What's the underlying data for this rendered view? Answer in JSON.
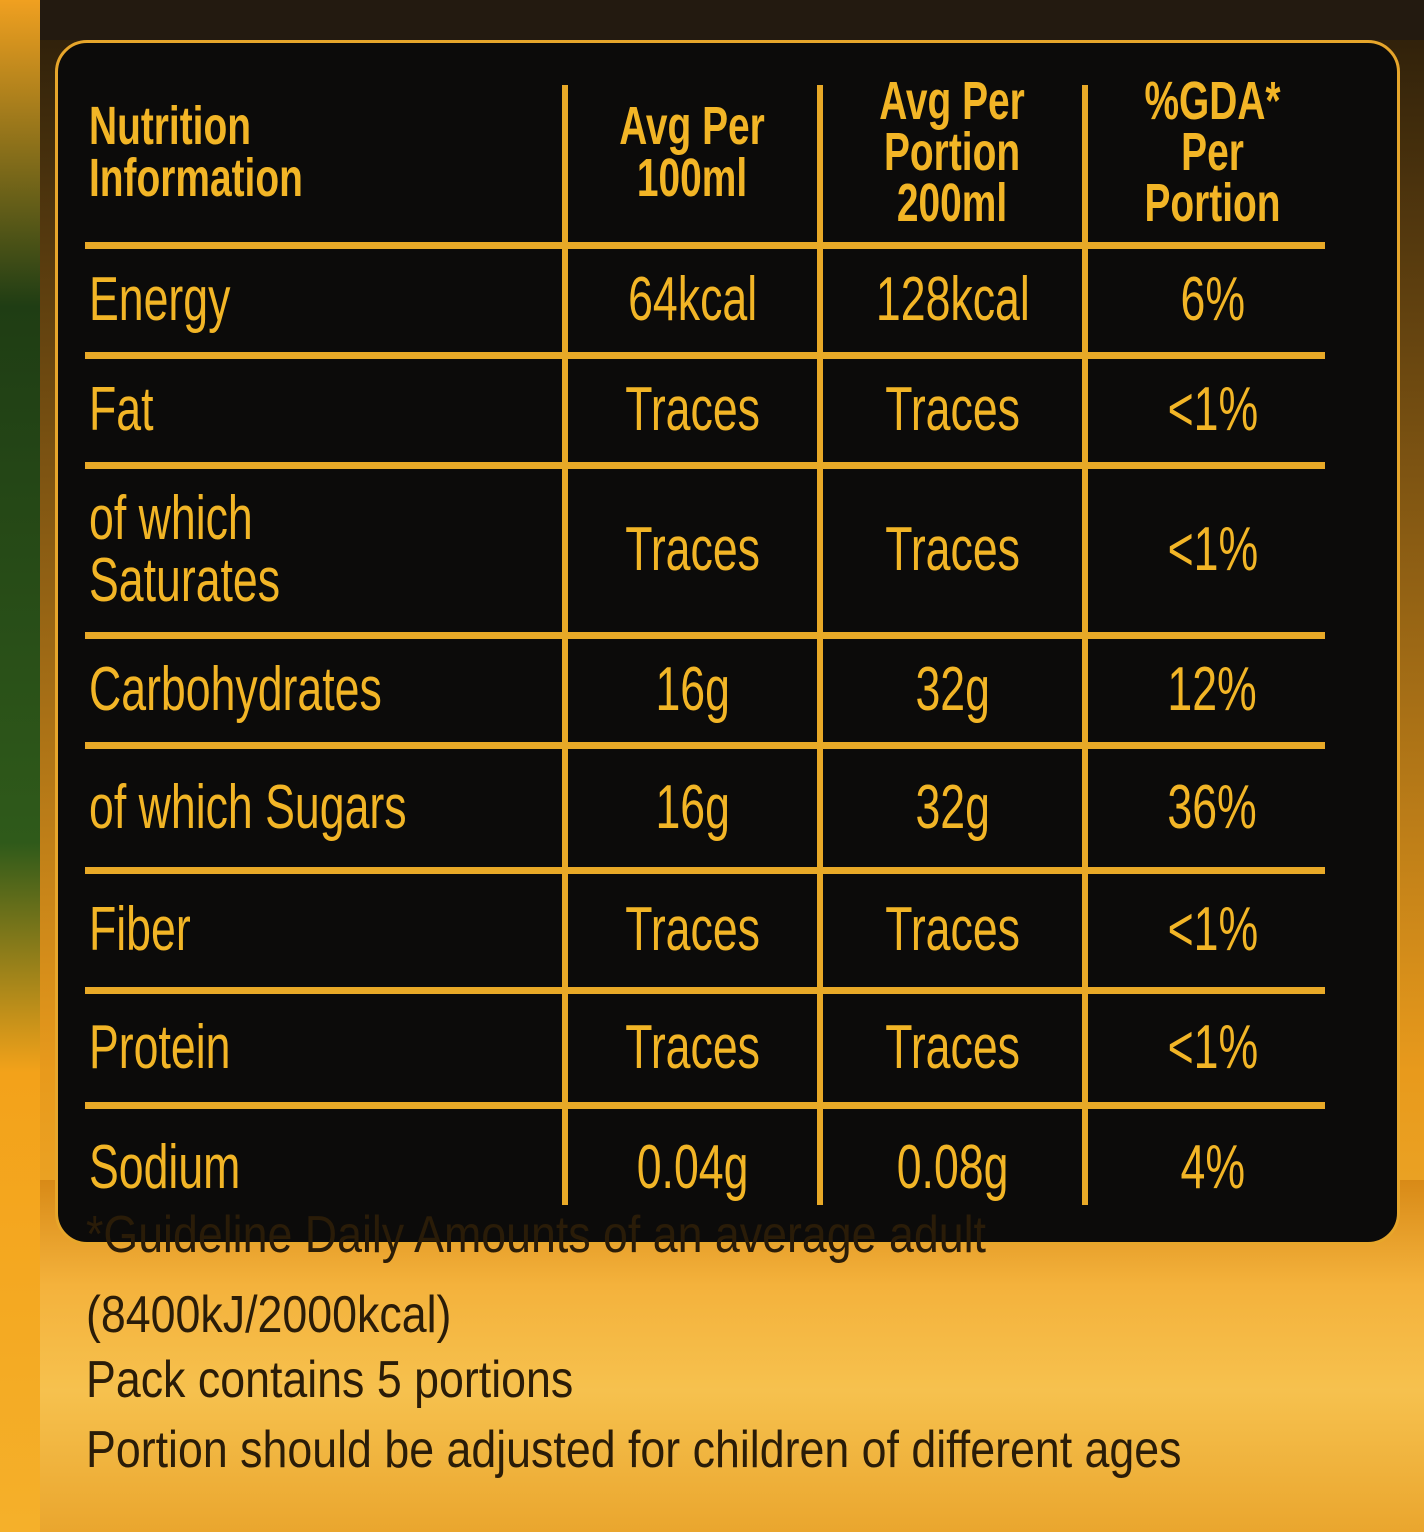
{
  "table": {
    "header": [
      "Nutrition\nInformation",
      "Avg Per\n100ml",
      "Avg Per\nPortion\n200ml",
      "%GDA*\nPer\nPortion"
    ],
    "rows": [
      [
        "Energy",
        "64kcal",
        "128kcal",
        "6%"
      ],
      [
        "Fat",
        "Traces",
        "Traces",
        "<1%"
      ],
      [
        "of which\nSaturates",
        "Traces",
        "Traces",
        "<1%"
      ],
      [
        "Carbohydrates",
        "16g",
        "32g",
        "12%"
      ],
      [
        "of which Sugars",
        "16g",
        "32g",
        "36%"
      ],
      [
        "Fiber",
        "Traces",
        "Traces",
        "<1%"
      ],
      [
        "Protein",
        "Traces",
        "Traces",
        "<1%"
      ],
      [
        "Sodium",
        "0.04g",
        "0.08g",
        "4%"
      ]
    ]
  },
  "footnotes": [
    "*Guideline Daily Amounts of an average adult",
    "(8400kJ/2000kcal)",
    "Pack contains 5 portions",
    "Portion should be adjusted for children of different ages"
  ]
}
